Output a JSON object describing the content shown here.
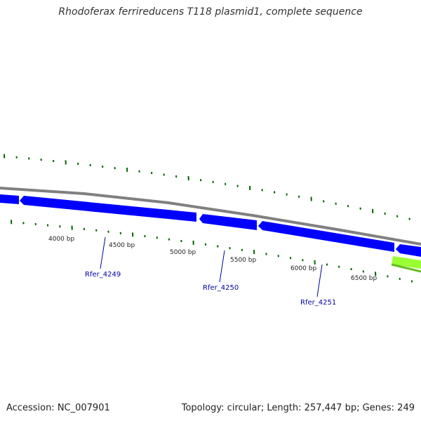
{
  "title": "Rhodoferax ferrireducens T118 plasmid1, complete sequence",
  "footer": {
    "accession": "Accession: NC_007901",
    "summary": "Topology: circular; Length: 257,447 bp; Genes: 249"
  },
  "colors": {
    "background": "#ffffff",
    "backbone": "#808080",
    "gene_forward": "#0000ff",
    "gene_rna": "#99ff33",
    "tick": "#006600",
    "gene_label": "#0000aa"
  },
  "position_labels": [
    "4000 bp",
    "4500 bp",
    "5000 bp",
    "5500 bp",
    "6000 bp",
    "6500 bp"
  ],
  "gene_labels": [
    "Rfer_4249",
    "Rfer_4250",
    "Rfer_4251"
  ]
}
